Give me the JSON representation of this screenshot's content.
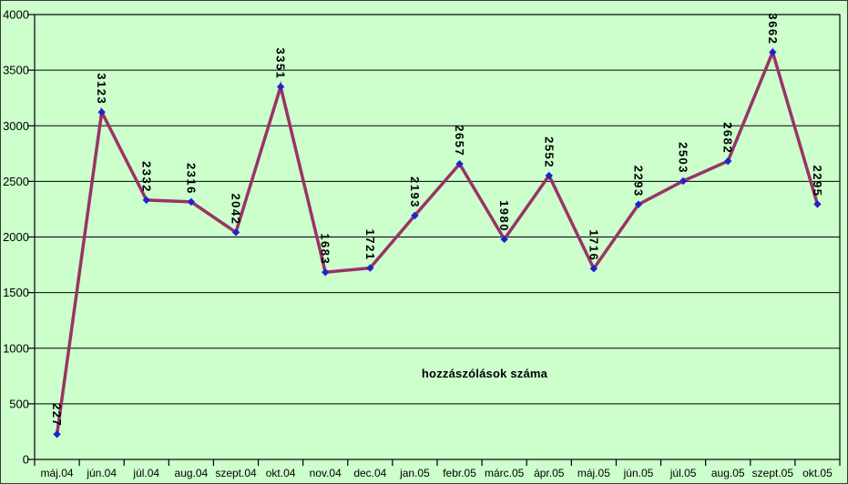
{
  "chart_data": {
    "type": "line",
    "title": "hozzászólások száma",
    "categories": [
      "máj.04",
      "jún.04",
      "júl.04",
      "aug.04",
      "szept.04",
      "okt.04",
      "nov.04",
      "dec.04",
      "jan.05",
      "febr.05",
      "márc.05",
      "ápr.05",
      "máj.05",
      "jún.05",
      "júl.05",
      "aug.05",
      "szept.05",
      "okt.05"
    ],
    "series": [
      {
        "name": "hozzászólások száma",
        "values": [
          227,
          3123,
          2332,
          2316,
          2042,
          3351,
          1683,
          1721,
          2193,
          2657,
          1980,
          2552,
          1716,
          2293,
          2503,
          2682,
          3662,
          2295
        ]
      }
    ],
    "data_labels_visible": true,
    "data_label_rotation_deg": 90,
    "xlabel": "",
    "ylabel": "",
    "ylim": [
      0,
      4000
    ],
    "ytick_step": 500,
    "yticks": [
      "0",
      "500",
      "1000",
      "1500",
      "2000",
      "2500",
      "3000",
      "3500",
      "4000"
    ],
    "grid": "horizontal",
    "legend_position": "none",
    "colors": {
      "background": "#CCFFCC",
      "line": "#993366",
      "marker": "#2222CC",
      "grid": "#000000",
      "plot_border": "#000000",
      "text": "#000000"
    }
  }
}
